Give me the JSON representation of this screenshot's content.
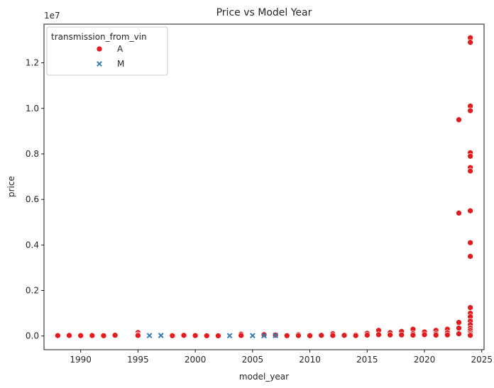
{
  "chart_data": {
    "type": "scatter",
    "title": "Price vs Model Year",
    "xlabel": "model_year",
    "ylabel": "price",
    "y_offset_text": "1e7",
    "xlim": [
      1986.8,
      2025.2
    ],
    "ylim": [
      -600000,
      13700000
    ],
    "x_ticks": [
      1990,
      1995,
      2000,
      2005,
      2010,
      2015,
      2020,
      2025
    ],
    "x_tick_labels": [
      "1990",
      "1995",
      "2000",
      "2005",
      "2010",
      "2015",
      "2020",
      "2025"
    ],
    "y_ticks": [
      0,
      2000000,
      4000000,
      6000000,
      8000000,
      10000000,
      12000000
    ],
    "y_tick_labels": [
      "0.0",
      "0.2",
      "0.4",
      "0.6",
      "0.8",
      "1.0",
      "1.2"
    ],
    "grid": false,
    "legend": {
      "title": "transmission_from_vin",
      "placement": "top-left",
      "entries": [
        {
          "label": "A",
          "marker": "circle",
          "color": "#e41a1c"
        },
        {
          "label": "M",
          "marker": "x",
          "color": "#377eb8"
        }
      ]
    },
    "series": [
      {
        "name": "A",
        "marker": "circle",
        "color": "#e41a1c",
        "points": [
          [
            1988,
            20000
          ],
          [
            1989,
            40000
          ],
          [
            1989,
            25000
          ],
          [
            1990,
            18000
          ],
          [
            1991,
            22000
          ],
          [
            1992,
            15000
          ],
          [
            1993,
            35000
          ],
          [
            1995,
            150000
          ],
          [
            1995,
            60000
          ],
          [
            1995,
            25000
          ],
          [
            1998,
            15000
          ],
          [
            1999,
            30000
          ],
          [
            2000,
            20000
          ],
          [
            2001,
            12000
          ],
          [
            2002,
            10000
          ],
          [
            2004,
            80000
          ],
          [
            2004,
            25000
          ],
          [
            2006,
            60000
          ],
          [
            2007,
            40000
          ],
          [
            2008,
            15000
          ],
          [
            2009,
            60000
          ],
          [
            2009,
            20000
          ],
          [
            2010,
            40000
          ],
          [
            2010,
            15000
          ],
          [
            2011,
            30000
          ],
          [
            2012,
            100000
          ],
          [
            2012,
            25000
          ],
          [
            2013,
            30000
          ],
          [
            2014,
            50000
          ],
          [
            2014,
            20000
          ],
          [
            2015,
            120000
          ],
          [
            2015,
            40000
          ],
          [
            2016,
            250000
          ],
          [
            2016,
            60000
          ],
          [
            2017,
            150000
          ],
          [
            2017,
            50000
          ],
          [
            2018,
            200000
          ],
          [
            2018,
            50000
          ],
          [
            2019,
            300000
          ],
          [
            2019,
            100000
          ],
          [
            2019,
            40000
          ],
          [
            2020,
            180000
          ],
          [
            2020,
            60000
          ],
          [
            2021,
            250000
          ],
          [
            2021,
            100000
          ],
          [
            2021,
            40000
          ],
          [
            2022,
            300000
          ],
          [
            2022,
            150000
          ],
          [
            2022,
            50000
          ],
          [
            2023,
            9500000
          ],
          [
            2023,
            5400000
          ],
          [
            2023,
            600000
          ],
          [
            2023,
            350000
          ],
          [
            2023,
            100000
          ],
          [
            2024,
            13100000
          ],
          [
            2024,
            12900000
          ],
          [
            2024,
            10100000
          ],
          [
            2024,
            9900000
          ],
          [
            2024,
            8050000
          ],
          [
            2024,
            7900000
          ],
          [
            2024,
            7400000
          ],
          [
            2024,
            7250000
          ],
          [
            2024,
            5500000
          ],
          [
            2024,
            4100000
          ],
          [
            2024,
            3500000
          ],
          [
            2024,
            1250000
          ],
          [
            2024,
            1000000
          ],
          [
            2024,
            850000
          ],
          [
            2024,
            650000
          ],
          [
            2024,
            500000
          ],
          [
            2024,
            350000
          ],
          [
            2024,
            250000
          ],
          [
            2024,
            150000
          ],
          [
            2024,
            80000
          ],
          [
            2024,
            30000
          ]
        ]
      },
      {
        "name": "M",
        "marker": "x",
        "color": "#377eb8",
        "points": [
          [
            1996,
            20000
          ],
          [
            1997,
            25000
          ],
          [
            2003,
            15000
          ],
          [
            2005,
            20000
          ],
          [
            2006,
            15000
          ],
          [
            2007,
            25000
          ]
        ]
      }
    ]
  }
}
